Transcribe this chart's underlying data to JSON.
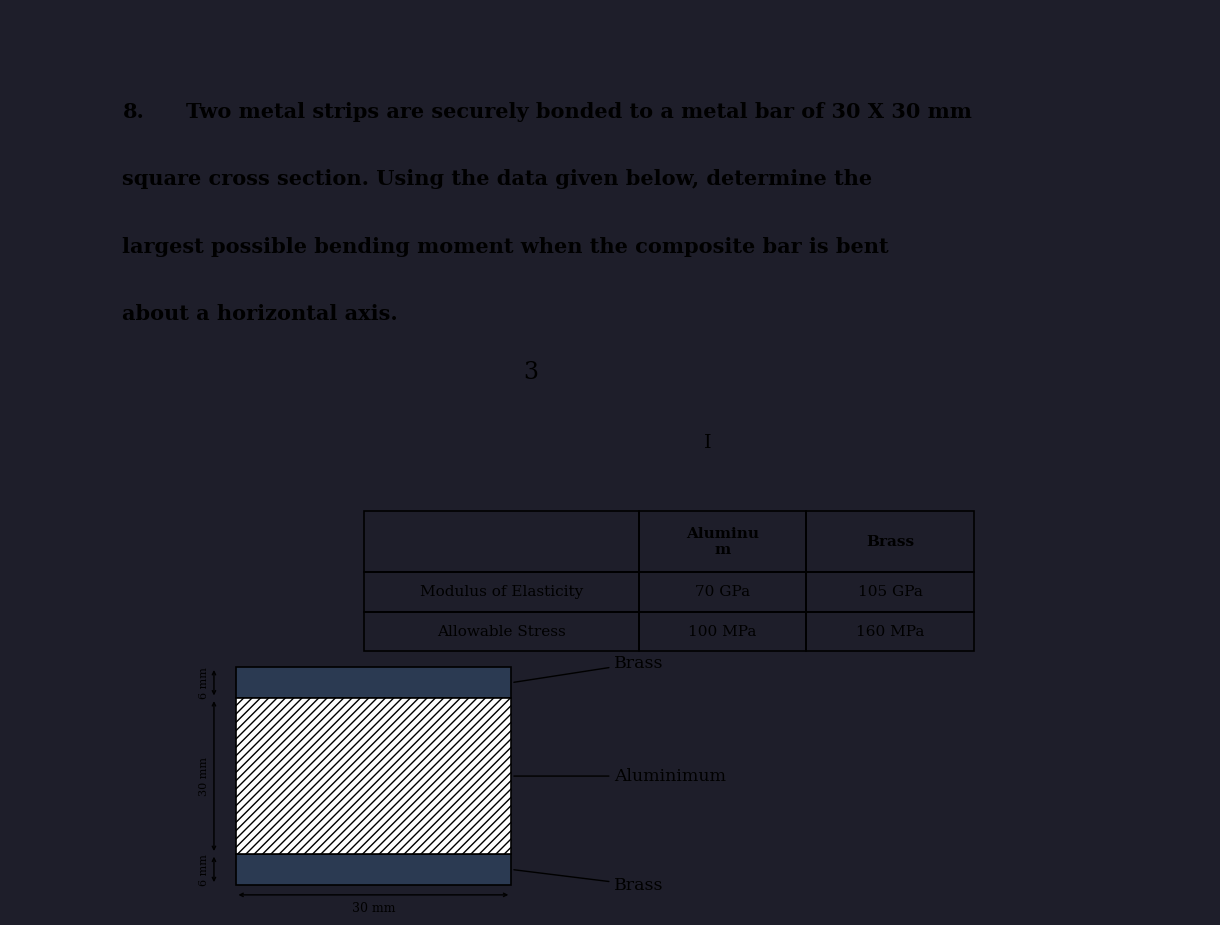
{
  "blue_bar_color": "#1a1aee",
  "top_panel_bg": "#dcdcdc",
  "separator_color": "#1a1a1a",
  "bottom_panel_bg": "#d0ccc8",
  "problem_number": "8.",
  "line1": "Two metal strips are securely bonded to a metal bar of 30 X 30 mm",
  "line2": "square cross section. Using the data given below, determine the",
  "line3": "largest possible bending moment when the composite bar is bent",
  "line4": "about a horizontal axis.",
  "number_3": "3",
  "cursor_I": "I",
  "col0_header": "",
  "col1_header": "Aluminu\nm",
  "col2_header": "Brass",
  "row1_label": "Modulus of Elasticity",
  "row1_col1": "70 GPa",
  "row1_col2": "105 GPa",
  "row2_label": "Allowable Stress",
  "row2_col1": "100 MPa",
  "row2_col2": "160 MPa",
  "brass_color": "#2b3a52",
  "alum_hatch": "////",
  "brass_label_top": "Brass",
  "alum_label": "Aluminimum",
  "brass_label_bot": "Brass",
  "dim_30mm_h": "30 mm",
  "dim_30mm_v": "30 mm",
  "dim_6mm_t": "6 mm",
  "dim_6mm_b": "6 mm",
  "overall_bg": "#1e1e2a"
}
